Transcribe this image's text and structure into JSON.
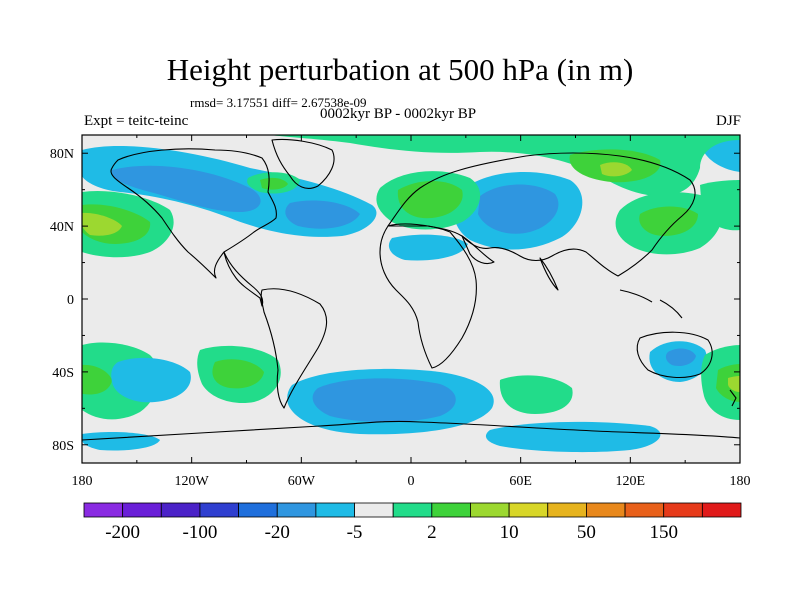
{
  "chart_data": {
    "type": "heatmap",
    "title": "Height perturbation at 500 hPa (in m)",
    "stats_text": "rmsd= 3.17551 diff= 2.67538e-09",
    "left_label": "Expt = teitc-teinc",
    "center_label": "0002kyr BP - 0002kyr BP",
    "right_label": "DJF",
    "x_range": [
      -180,
      180
    ],
    "y_range": [
      -90,
      90
    ],
    "x_tick_labels": [
      "180",
      "120W",
      "60W",
      "0",
      "60E",
      "120E",
      "180"
    ],
    "y_tick_labels": [
      "80N",
      "40N",
      "0",
      "40S",
      "80S"
    ],
    "colorbar": {
      "colors": [
        "#8a2be2",
        "#6a1fd8",
        "#4b22c8",
        "#2f3fd0",
        "#1f6fdc",
        "#2f96e0",
        "#1fbbe6",
        "#ebebeb",
        "#22dc8a",
        "#3ed23a",
        "#9cd830",
        "#d8d628",
        "#e6b31e",
        "#e8881c",
        "#e8601a",
        "#e63a1a",
        "#e01a1a"
      ],
      "labels": [
        "-200",
        "-100",
        "-20",
        "-5",
        "2",
        "10",
        "50",
        "150"
      ]
    },
    "anomaly_regions": [
      {
        "region": "North Atlantic / Canada",
        "sign": "negative"
      },
      {
        "region": "North Pacific (east)",
        "sign": "positive"
      },
      {
        "region": "Europe",
        "sign": "positive"
      },
      {
        "region": "Central Asia",
        "sign": "negative"
      },
      {
        "region": "Arctic (Siberia)",
        "sign": "positive"
      },
      {
        "region": "South Atlantic",
        "sign": "negative"
      },
      {
        "region": "South Pacific",
        "sign": "positive"
      },
      {
        "region": "Australia",
        "sign": "negative"
      },
      {
        "region": "Southern Ocean",
        "sign": "negative"
      }
    ]
  }
}
